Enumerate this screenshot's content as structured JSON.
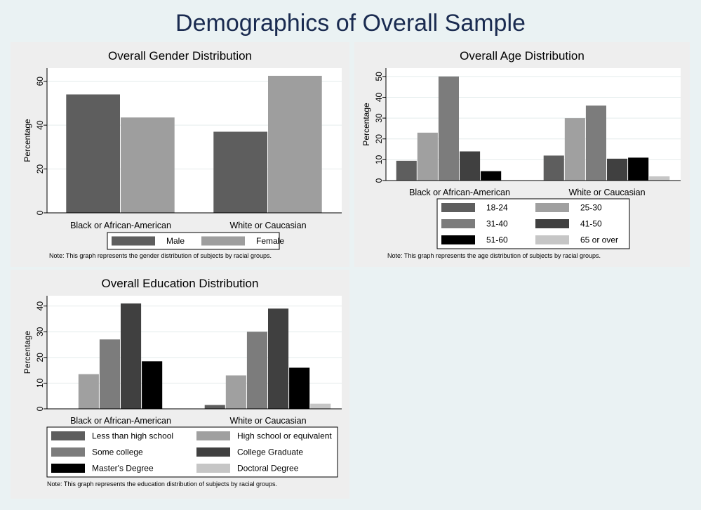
{
  "page": {
    "title": "Demographics of Overall Sample"
  },
  "colors": {
    "background": "#eaf2f3",
    "panel": "#eeeeee",
    "title": "#1a2b50"
  },
  "chart_data": [
    {
      "type": "bar",
      "title": "Overall Gender Distribution",
      "ylabel": "Percentage",
      "xlabel": "",
      "ylim": [
        0,
        66
      ],
      "yticks": [
        0,
        20,
        40,
        60
      ],
      "grid": true,
      "legend_position": "bottom",
      "categories": [
        "Black or African-American",
        "White or Caucasian"
      ],
      "series": [
        {
          "name": "Male",
          "color": "#5e5e5e",
          "values": [
            54,
            37
          ]
        },
        {
          "name": "Female",
          "color": "#9e9e9e",
          "values": [
            43.5,
            62.5
          ]
        }
      ],
      "note": "Note: This graph represents the gender distribution of subjects by racial groups."
    },
    {
      "type": "bar",
      "title": "Overall Age Distribution",
      "ylabel": "Percentage",
      "xlabel": "",
      "ylim": [
        0,
        54
      ],
      "yticks": [
        0,
        10,
        20,
        30,
        40,
        50
      ],
      "grid": true,
      "legend_position": "bottom",
      "categories": [
        "Black or African-American",
        "White or Caucasian"
      ],
      "series": [
        {
          "name": "18-24",
          "color": "#5e5e5e",
          "values": [
            9.5,
            12
          ]
        },
        {
          "name": "25-30",
          "color": "#a0a0a0",
          "values": [
            23,
            30
          ]
        },
        {
          "name": "31-40",
          "color": "#7c7c7c",
          "values": [
            50,
            36
          ]
        },
        {
          "name": "41-50",
          "color": "#404040",
          "values": [
            14,
            10.5
          ]
        },
        {
          "name": "51-60",
          "color": "#000000",
          "values": [
            4.5,
            11
          ]
        },
        {
          "name": "65 or over",
          "color": "#c6c6c6",
          "values": [
            0,
            2
          ]
        }
      ],
      "note": "Note: This graph represents the age distribution of subjects by racial groups."
    },
    {
      "type": "bar",
      "title": "Overall Education Distribution",
      "ylabel": "Percentage",
      "xlabel": "",
      "ylim": [
        0,
        44
      ],
      "yticks": [
        0,
        10,
        20,
        30,
        40
      ],
      "grid": true,
      "legend_position": "bottom",
      "categories": [
        "Black or African-American",
        "White or Caucasian"
      ],
      "series": [
        {
          "name": "Less than high school",
          "color": "#5e5e5e",
          "values": [
            0,
            1.5
          ]
        },
        {
          "name": "High school or equivalent",
          "color": "#a0a0a0",
          "values": [
            13.5,
            13
          ]
        },
        {
          "name": "Some college",
          "color": "#7c7c7c",
          "values": [
            27,
            30
          ]
        },
        {
          "name": "College Graduate",
          "color": "#404040",
          "values": [
            41,
            39
          ]
        },
        {
          "name": "Master's Degree",
          "color": "#000000",
          "values": [
            18.5,
            16
          ]
        },
        {
          "name": "Doctoral Degree",
          "color": "#c6c6c6",
          "values": [
            0,
            2
          ]
        }
      ],
      "note": "Note: This graph represents the education distribution of subjects by racial groups."
    }
  ]
}
